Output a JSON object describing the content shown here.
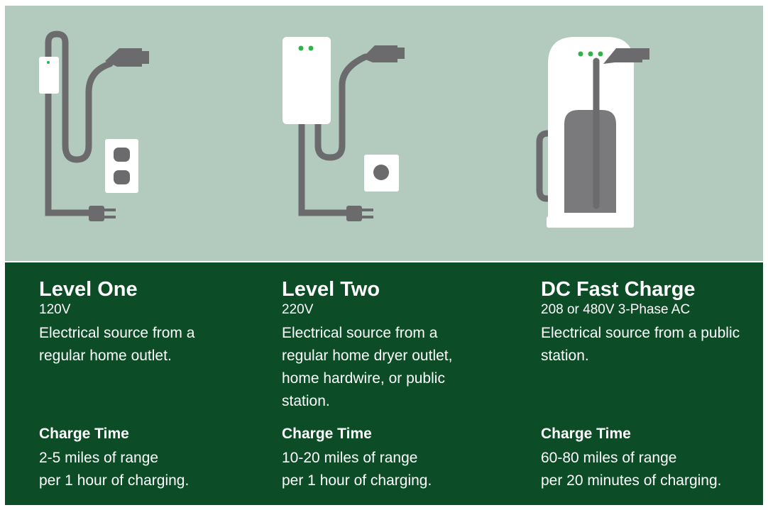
{
  "levels": [
    {
      "title": "Level One",
      "voltage": "120V",
      "description": "Electrical source from a regular home outlet.",
      "charge_time_label": "Charge Time",
      "charge_time": [
        "2-5 miles of range",
        "per 1 hour of charging."
      ]
    },
    {
      "title": "Level Two",
      "voltage": "220V",
      "description": "Electrical source from a regular home dryer outlet, home hardwire, or public station.",
      "charge_time_label": "Charge Time",
      "charge_time": [
        "10-20 miles of range",
        "per 1 hour of charging."
      ]
    },
    {
      "title": "DC Fast Charge",
      "voltage": "208 or 480V 3-Phase AC",
      "description": "Electrical source from a public station.",
      "charge_time_label": "Charge Time",
      "charge_time": [
        "60-80 miles of range",
        "per 20 minutes of charging."
      ]
    }
  ]
}
